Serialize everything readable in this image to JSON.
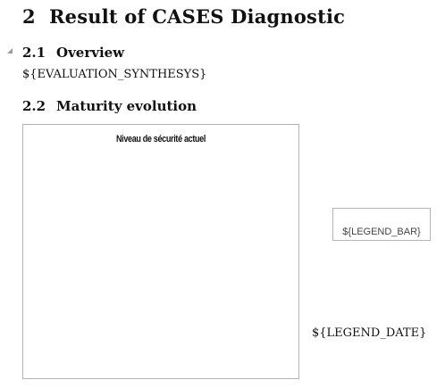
{
  "heading1": {
    "number": "2",
    "title": "Result of CASES Diagnostic"
  },
  "overview": {
    "number": "2.1",
    "title": "Overview",
    "body": "${EVALUATION_SYNTHESYS}"
  },
  "maturity": {
    "number": "2.2",
    "title": "Maturity evolution"
  },
  "chart": {
    "title": "Niveau de sécurité actuel"
  },
  "legend_bar": "${LEGEND_BAR}",
  "legend_date": "${LEGEND_DATE}"
}
